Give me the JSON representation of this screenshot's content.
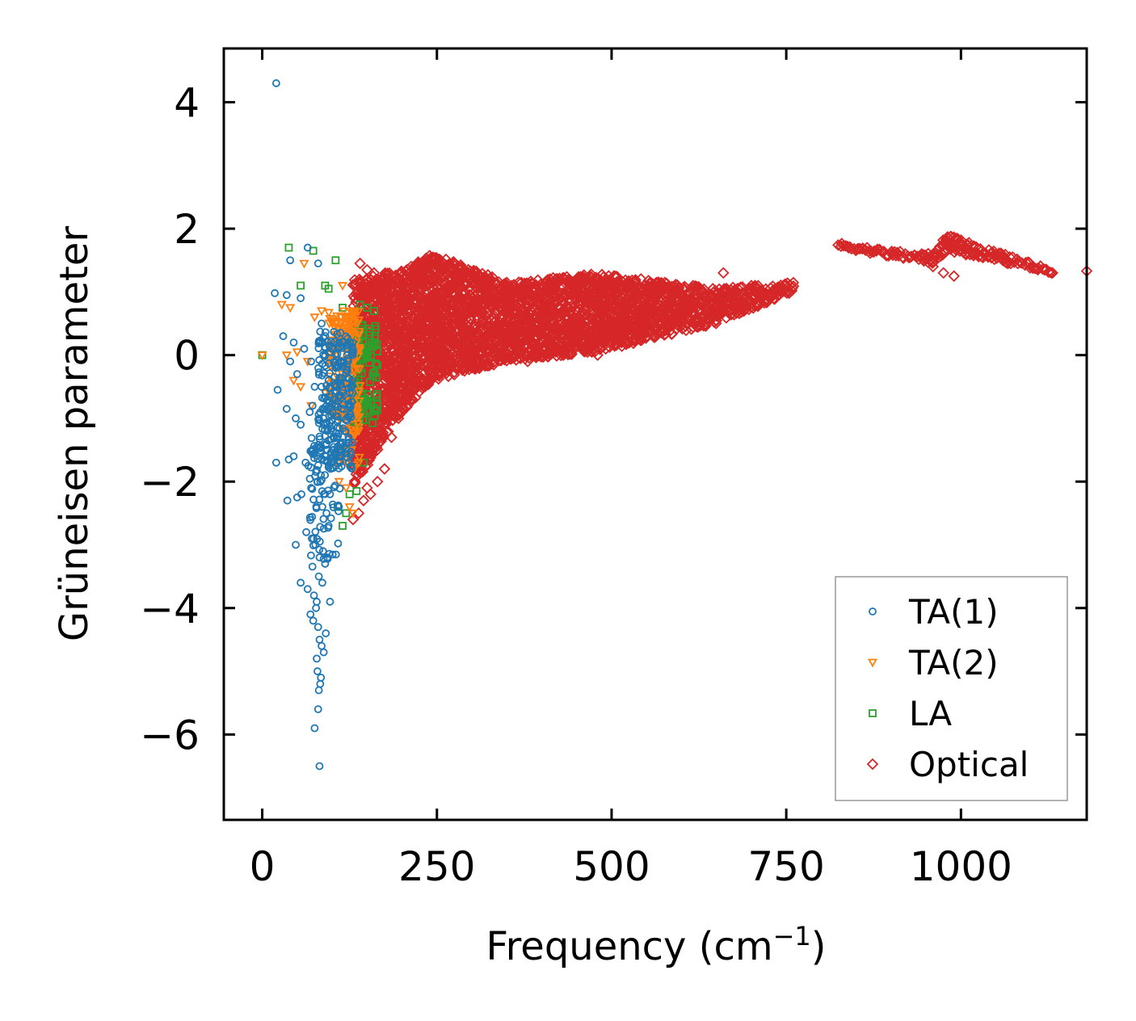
{
  "chart_data": {
    "type": "scatter",
    "title": "",
    "xlabel": "Frequency (cm",
    "xlabel_sup": "−1",
    "xlabel_end": ")",
    "ylabel": "Grüneisen parameter",
    "xlim": [
      -55,
      1180
    ],
    "ylim": [
      -7.35,
      4.85
    ],
    "xticks": [
      0,
      250,
      500,
      750,
      1000
    ],
    "xtick_labels": [
      "0",
      "250",
      "500",
      "750",
      "1000"
    ],
    "yticks": [
      4,
      2,
      0,
      -2,
      -4,
      -6
    ],
    "ytick_labels": [
      "4",
      "2",
      "0",
      "−2",
      "−4",
      "−6"
    ],
    "grid": false,
    "legend_position": "bottom-right",
    "series": [
      {
        "name": "TA(1)",
        "marker": "circle",
        "color": "#1f77b4",
        "x": [
          20,
          40,
          65,
          80,
          18,
          35,
          55,
          85,
          30,
          45,
          60,
          70,
          90,
          100,
          110,
          120,
          130,
          40,
          50,
          75,
          95,
          105,
          115,
          125,
          22,
          35,
          48,
          55,
          68,
          72,
          88,
          93,
          102,
          112,
          20,
          38,
          45,
          62,
          66,
          78,
          84,
          91,
          36,
          50,
          56,
          70,
          79,
          86,
          92,
          97,
          48,
          63,
          71,
          76,
          82,
          87,
          95,
          55,
          65,
          74,
          78,
          81,
          86,
          90,
          93,
          69,
          73,
          77,
          80,
          82,
          85,
          88,
          91,
          97,
          78,
          79,
          81,
          84,
          83,
          75,
          80,
          82
        ],
        "y": [
          4.3,
          1.5,
          1.7,
          1.45,
          0.98,
          0.95,
          0.9,
          0.5,
          0.3,
          0.2,
          0.1,
          -0.1,
          0.0,
          0.1,
          0.2,
          0.15,
          0.05,
          -0.1,
          -0.3,
          -0.5,
          -0.4,
          -0.2,
          -0.6,
          -0.8,
          -0.55,
          -0.85,
          -1.0,
          -1.1,
          -0.9,
          -0.8,
          -1.0,
          -1.2,
          -1.3,
          -1.5,
          -1.7,
          -1.65,
          -1.6,
          -1.7,
          -1.75,
          -1.45,
          -1.9,
          -1.6,
          -2.3,
          -2.25,
          -2.2,
          -2.1,
          -2.0,
          -2.4,
          -2.5,
          -2.2,
          -3.0,
          -2.8,
          -2.9,
          -3.0,
          -3.2,
          -3.1,
          -2.7,
          -3.6,
          -3.7,
          -3.8,
          -3.9,
          -3.5,
          -3.6,
          -3.3,
          -3.2,
          -4.1,
          -4.2,
          -4.0,
          -4.3,
          -4.5,
          -4.6,
          -4.7,
          -4.4,
          -3.9,
          -4.8,
          -5.0,
          -5.3,
          -5.1,
          -5.2,
          -5.9,
          -5.6,
          -6.5
        ],
        "clusters": [
          {
            "x": [
              80,
              130
            ],
            "y": [
              -1.8,
              0.4
            ],
            "n": 230
          },
          {
            "x": [
              68,
              112
            ],
            "y": [
              -3.4,
              -1.2
            ],
            "n": 70
          }
        ]
      },
      {
        "name": "TA(2)",
        "marker": "triangle-down",
        "color": "#ff7f0e",
        "x": [
          0,
          28,
          40,
          60,
          115,
          130,
          35,
          50,
          65,
          75,
          85,
          100,
          110,
          120,
          125,
          135,
          45,
          55,
          70,
          90,
          105,
          118,
          128,
          138,
          110,
          120,
          125,
          130
        ],
        "y": [
          0.0,
          0.8,
          0.75,
          1.45,
          1.1,
          0.7,
          0.0,
          0.05,
          -0.1,
          0.6,
          0.7,
          0.5,
          0.4,
          0.6,
          0.3,
          0.2,
          -0.4,
          -0.5,
          -0.8,
          -0.6,
          -0.9,
          -1.2,
          -1.5,
          -1.7,
          -2.0,
          -2.1,
          -2.4,
          -2.5
        ],
        "clusters": [
          {
            "x": [
              95,
              140
            ],
            "y": [
              -1.0,
              0.7
            ],
            "n": 170
          },
          {
            "x": [
              105,
              140
            ],
            "y": [
              -1.8,
              -0.8
            ],
            "n": 40
          }
        ]
      },
      {
        "name": "LA",
        "marker": "square",
        "color": "#2ca02c",
        "x": [
          0,
          38,
          73,
          105,
          55,
          90,
          95,
          115,
          130,
          140,
          150,
          160,
          120,
          125,
          135,
          145,
          115,
          120,
          108
        ],
        "y": [
          0.0,
          1.7,
          1.65,
          1.5,
          1.1,
          1.1,
          1.05,
          0.75,
          0.65,
          0.8,
          0.75,
          0.7,
          -1.5,
          -2.2,
          -2.15,
          -1.7,
          -2.7,
          -2.5,
          -2.4
        ],
        "clusters": [
          {
            "x": [
              128,
              165
            ],
            "y": [
              -1.1,
              0.5
            ],
            "n": 120
          }
        ]
      },
      {
        "name": "Optical",
        "marker": "diamond",
        "color": "#d62728",
        "x": [
          140,
          150,
          160,
          165,
          175,
          130,
          138,
          145,
          200,
          215,
          300,
          420,
          480,
          590,
          650,
          700,
          755,
          660,
          600,
          550,
          520,
          470,
          380,
          300,
          240,
          210,
          195,
          185,
          175,
          165,
          155,
          150,
          1130,
          1110,
          960,
          975,
          990,
          1180
        ],
        "y": [
          1.45,
          1.35,
          1.3,
          1.15,
          1.05,
          -2.6,
          -2.5,
          -2.3,
          -0.9,
          -0.7,
          0.1,
          0.05,
          0.0,
          0.6,
          0.55,
          1.1,
          1.1,
          1.3,
          0.55,
          0.3,
          0.25,
          0.2,
          -0.1,
          -0.2,
          -0.4,
          -0.6,
          -1.0,
          -1.3,
          -1.8,
          -2.0,
          -2.2,
          -2.1,
          1.3,
          1.35,
          1.4,
          1.3,
          1.25,
          1.33
        ],
        "bands": [
          {
            "x": [
              130,
              200
            ],
            "y_low": [
              -2.1,
              -0.9
            ],
            "y_high": [
              1.2,
              1.35
            ]
          },
          {
            "x": [
              200,
              245
            ],
            "y_low": [
              -0.9,
              -0.4
            ],
            "y_high": [
              1.35,
              1.6
            ]
          },
          {
            "x": [
              245,
              350
            ],
            "y_low": [
              -0.4,
              -0.1
            ],
            "y_high": [
              1.6,
              1.15
            ]
          },
          {
            "x": [
              350,
              480
            ],
            "y_low": [
              -0.1,
              0.05
            ],
            "y_high": [
              1.15,
              1.3
            ]
          },
          {
            "x": [
              480,
              650
            ],
            "y_low": [
              0.05,
              0.5
            ],
            "y_high": [
              1.3,
              1.05
            ]
          },
          {
            "x": [
              650,
              760
            ],
            "y_low": [
              0.5,
              1.0
            ],
            "y_high": [
              1.05,
              1.15
            ]
          },
          {
            "x": [
              825,
              900
            ],
            "y_low": [
              1.7,
              1.55
            ],
            "y_high": [
              1.78,
              1.65
            ]
          },
          {
            "x": [
              900,
              960
            ],
            "y_low": [
              1.55,
              1.45
            ],
            "y_high": [
              1.65,
              1.6
            ]
          },
          {
            "x": [
              960,
              980
            ],
            "y_low": [
              1.45,
              1.65
            ],
            "y_high": [
              1.6,
              1.9
            ]
          },
          {
            "x": [
              980,
              1130
            ],
            "y_low": [
              1.65,
              1.3
            ],
            "y_high": [
              1.9,
              1.35
            ]
          }
        ]
      }
    ]
  }
}
